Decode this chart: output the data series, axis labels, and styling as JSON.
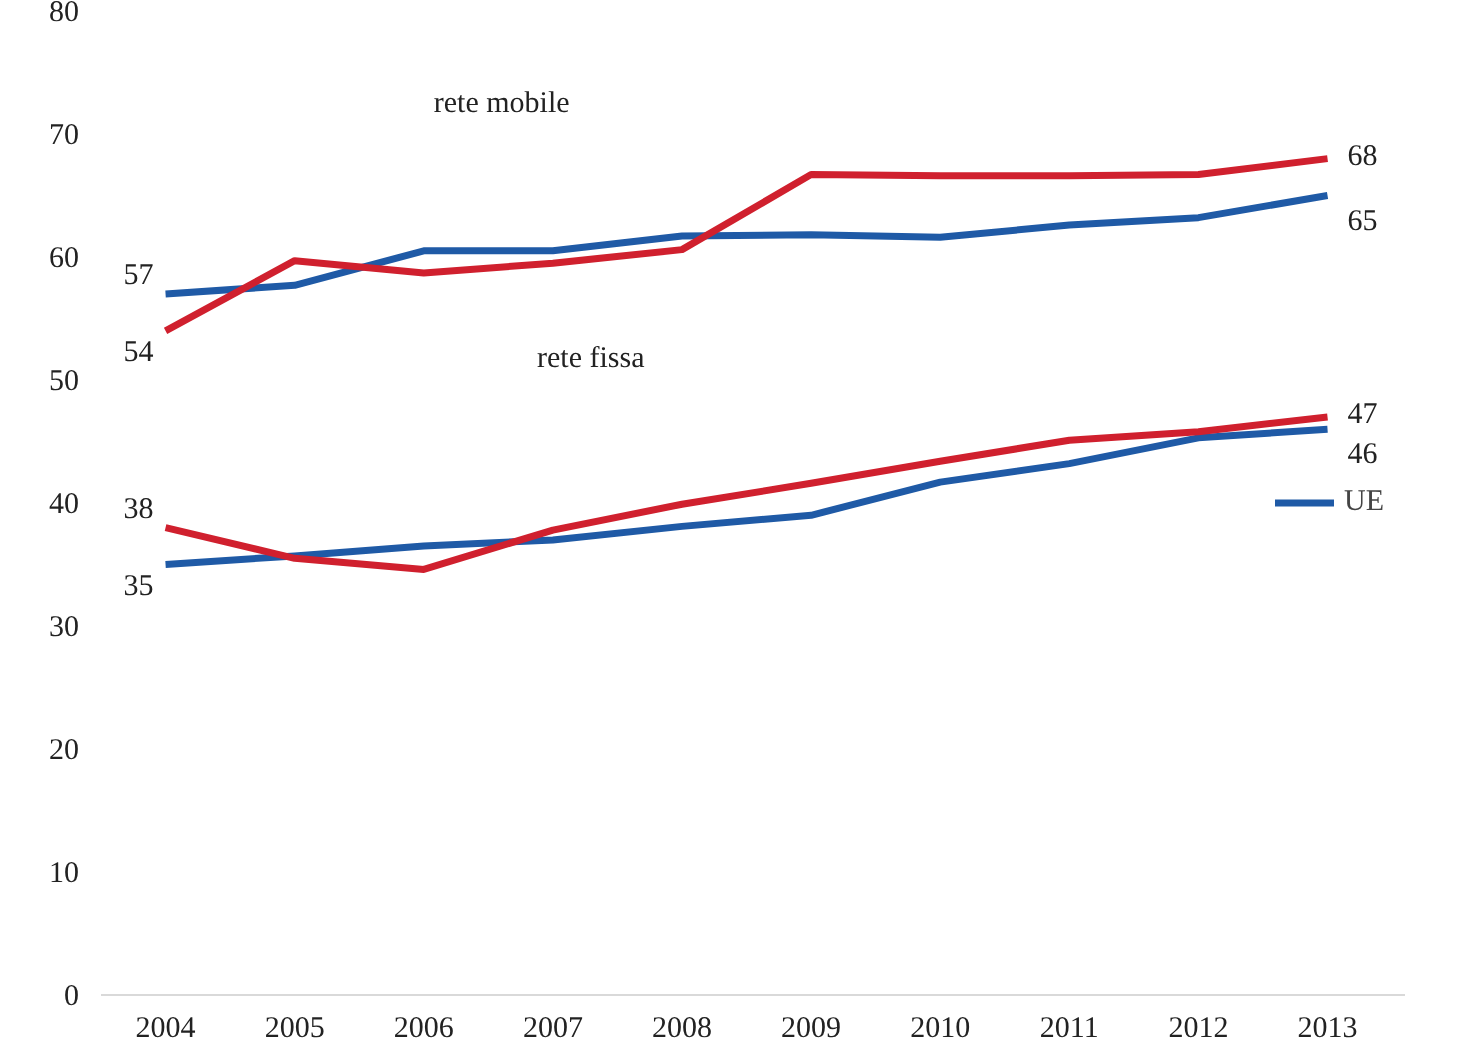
{
  "chart_data": {
    "type": "line",
    "x": [
      2004,
      2005,
      2006,
      2007,
      2008,
      2009,
      2010,
      2011,
      2012,
      2013
    ],
    "xlim": [
      2003.5,
      2013.6
    ],
    "xticks": [
      2004,
      2005,
      2006,
      2007,
      2008,
      2009,
      2010,
      2011,
      2012,
      2013
    ],
    "ylim": [
      0,
      80
    ],
    "yticks": [
      0,
      10,
      20,
      30,
      40,
      50,
      60,
      70,
      80
    ],
    "grid": false,
    "legend": "right",
    "marker": "none",
    "line_style": "solid",
    "series": [
      {
        "name": "UE",
        "color": "#1f5aa6",
        "values": [
          57,
          57.7,
          60.5,
          60.5,
          61.7,
          61.8,
          61.6,
          62.6,
          63.2,
          65
        ],
        "value_labels": [
          "57",
          null,
          null,
          null,
          null,
          null,
          null,
          null,
          null,
          "65"
        ]
      },
      {
        "color": "#d0202e",
        "values": [
          54,
          59.7,
          58.7,
          59.5,
          60.6,
          66.7,
          66.6,
          66.6,
          66.7,
          68
        ],
        "value_labels": [
          "54",
          null,
          null,
          null,
          null,
          null,
          null,
          null,
          null,
          "68"
        ]
      },
      {
        "color": "#1f5aa6",
        "values": [
          35,
          35.7,
          36.5,
          37,
          38.1,
          39,
          41.7,
          43.2,
          45.3,
          46
        ],
        "value_labels": [
          "35",
          null,
          null,
          null,
          null,
          null,
          null,
          null,
          null,
          "46"
        ]
      },
      {
        "color": "#d0202e",
        "values": [
          38,
          35.5,
          34.6,
          37.8,
          39.9,
          41.6,
          43.4,
          45.1,
          45.8,
          47
        ],
        "value_labels": [
          "38",
          null,
          null,
          null,
          null,
          null,
          null,
          null,
          null,
          "47"
        ]
      }
    ],
    "annotations": [
      "rete mobile",
      "rete fissa"
    ]
  }
}
